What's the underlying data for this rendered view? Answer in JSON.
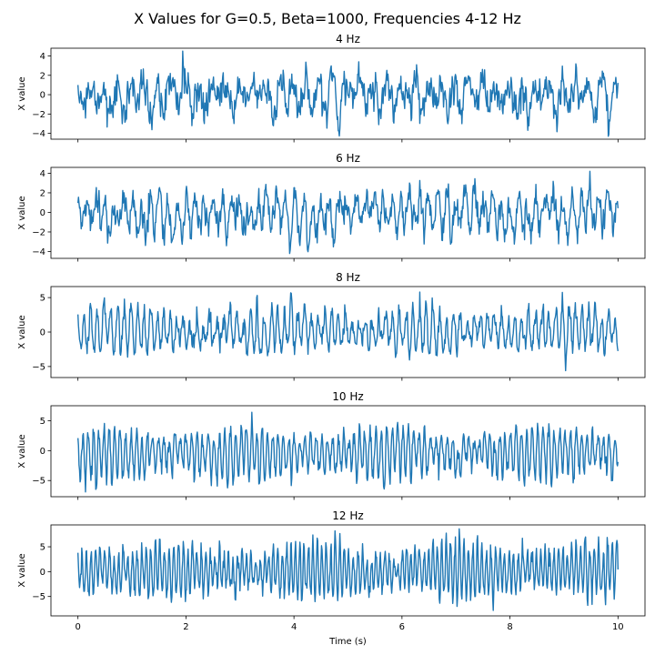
{
  "chart_data": {
    "type": "line",
    "title": "X Values for G=0.5, Beta=1000, Frequencies 4-12 Hz",
    "xlabel": "Time (s)",
    "xlim": [
      -0.5,
      10.5
    ],
    "xticks": [
      0,
      2,
      4,
      6,
      8,
      10
    ],
    "sharex": true,
    "grid": false,
    "legend": "none",
    "line_color": "#1f77b4",
    "duration_s": 10,
    "panels": [
      {
        "title": "4 Hz",
        "ylabel": "X value",
        "freq_hz": 4,
        "ylim": [
          -4.6,
          4.8
        ],
        "yticks": [
          -4,
          -2,
          0,
          2,
          4
        ],
        "amplitude": 1.1,
        "noise": 1.0,
        "peak_max": 4.5,
        "peak_min": -4.3,
        "seed": 11
      },
      {
        "title": "6 Hz",
        "ylabel": "X value",
        "freq_hz": 6,
        "ylim": [
          -4.7,
          4.6
        ],
        "yticks": [
          -4,
          -2,
          0,
          2,
          4
        ],
        "amplitude": 1.7,
        "noise": 0.9,
        "peak_max": 4.2,
        "peak_min": -4.2,
        "seed": 23
      },
      {
        "title": "8 Hz",
        "ylabel": "X value",
        "freq_hz": 8,
        "ylim": [
          -6.6,
          6.6
        ],
        "yticks": [
          -5,
          0,
          5
        ],
        "amplitude": 2.6,
        "noise": 0.9,
        "peak_max": 5.8,
        "peak_min": -5.6,
        "seed": 37
      },
      {
        "title": "10 Hz",
        "ylabel": "X value",
        "freq_hz": 10,
        "ylim": [
          -7.7,
          7.5
        ],
        "yticks": [
          -5,
          0,
          5
        ],
        "amplitude": 3.6,
        "noise": 0.8,
        "peak_max": 6.4,
        "peak_min": -6.9,
        "seed": 51
      },
      {
        "title": "12 Hz",
        "ylabel": "X value",
        "freq_hz": 12,
        "ylim": [
          -8.9,
          9.4
        ],
        "yticks": [
          -5,
          0,
          5
        ],
        "amplitude": 4.6,
        "noise": 0.9,
        "peak_max": 8.6,
        "peak_min": -7.8,
        "seed": 73
      }
    ]
  }
}
